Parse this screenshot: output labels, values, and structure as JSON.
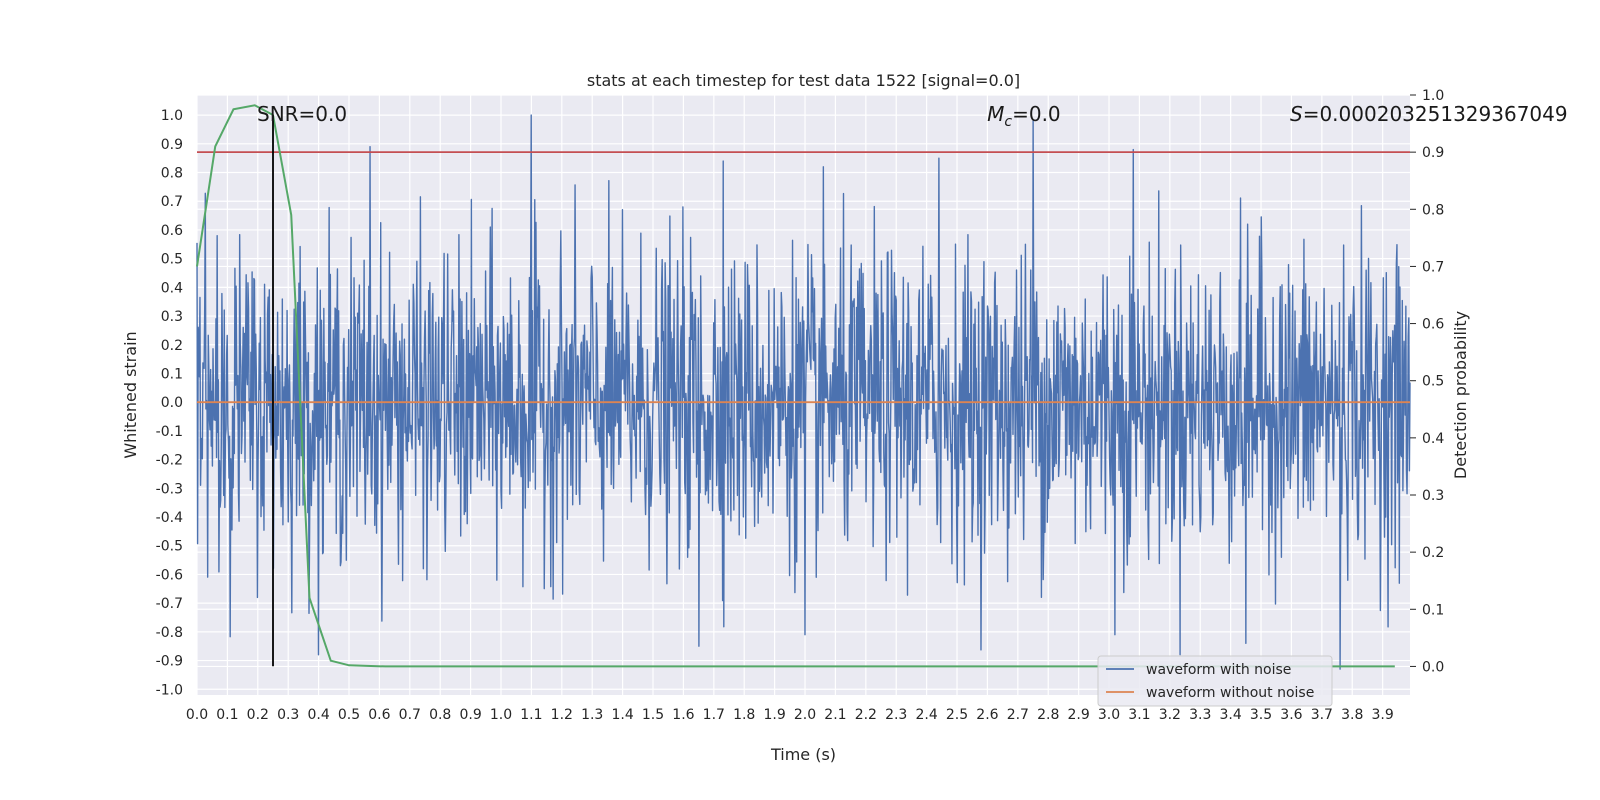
{
  "chart_data": {
    "type": "line",
    "title": "stats at each timestep for test data 1522 [signal=0.0]",
    "xlabel": "Time (s)",
    "ylabel": "Whitened strain",
    "y2label": "Detection probability",
    "xlim": [
      0.0,
      3.99
    ],
    "ylim": [
      -1.02,
      1.07
    ],
    "y2lim": [
      -0.05,
      1.0
    ],
    "xticks": [
      "0.0",
      "0.1",
      "0.2",
      "0.3",
      "0.4",
      "0.5",
      "0.6",
      "0.7",
      "0.8",
      "0.9",
      "1.0",
      "1.1",
      "1.2",
      "1.3",
      "1.4",
      "1.5",
      "1.6",
      "1.7",
      "1.8",
      "1.9",
      "2.0",
      "2.1",
      "2.2",
      "2.3",
      "2.4",
      "2.5",
      "2.6",
      "2.7",
      "2.8",
      "2.9",
      "3.0",
      "3.1",
      "3.2",
      "3.3",
      "3.4",
      "3.5",
      "3.6",
      "3.7",
      "3.8",
      "3.9"
    ],
    "yticks": [
      "1.0",
      "0.9",
      "0.8",
      "0.7",
      "0.6",
      "0.5",
      "0.4",
      "0.3",
      "0.2",
      "0.1",
      "0.0",
      "-0.1",
      "-0.2",
      "-0.3",
      "-0.4",
      "-0.5",
      "-0.6",
      "-0.7",
      "-0.8",
      "-0.9",
      "-1.0"
    ],
    "y2ticks": [
      "1.0",
      "0.9",
      "0.8",
      "0.7",
      "0.6",
      "0.5",
      "0.4",
      "0.3",
      "0.2",
      "0.1",
      "0.0"
    ],
    "grid": true,
    "legend_position": "bottom-right",
    "background": "#eaeaf2",
    "series": [
      {
        "name": "waveform with noise",
        "color": "#4c72b0",
        "axis": "left",
        "kind": "noise",
        "amplitude_range": [
          -0.93,
          1.0
        ],
        "n_samples": 2048,
        "peaks": [
          {
            "x": 1.1,
            "y": 1.0
          },
          {
            "x": 2.75,
            "y": 0.98
          },
          {
            "x": 0.57,
            "y": 0.89
          },
          {
            "x": 3.08,
            "y": 0.88
          },
          {
            "x": 2.44,
            "y": 0.85
          },
          {
            "x": 1.73,
            "y": 0.84
          },
          {
            "x": 2.06,
            "y": 0.82
          },
          {
            "x": 3.76,
            "y": -0.93
          },
          {
            "x": 1.65,
            "y": -0.85
          },
          {
            "x": 3.45,
            "y": -0.84
          },
          {
            "x": 3.02,
            "y": -0.81
          },
          {
            "x": 2.0,
            "y": -0.81
          }
        ]
      },
      {
        "name": "waveform without noise",
        "color": "#dd8452",
        "axis": "left",
        "x": [
          0.0,
          3.99
        ],
        "y": [
          0.0,
          0.0
        ]
      },
      {
        "color": "#55a868",
        "axis": "right",
        "x": [
          0.0,
          0.06,
          0.12,
          0.19,
          0.25,
          0.31,
          0.37,
          0.44,
          0.5,
          0.56,
          0.62,
          0.69,
          1.0,
          2.0,
          3.0,
          3.94
        ],
        "y": [
          0.7,
          0.91,
          0.975,
          0.982,
          0.965,
          0.79,
          0.12,
          0.01,
          0.002,
          0.001,
          0.0,
          0.0,
          0.0,
          0.0,
          0.0,
          0.0
        ]
      }
    ],
    "threshold_line": {
      "axis": "right",
      "y": 0.9,
      "color": "#c44e52"
    },
    "marker_line": {
      "x": 0.25,
      "y_top": 1.0,
      "y_bottom": -0.92,
      "color": "#000000"
    },
    "annotations": [
      {
        "text": "SNR=0.0",
        "x": 0.35
      },
      {
        "text": "=0.0",
        "math_prefix": "M",
        "math_sub": "c",
        "x": 2.72
      },
      {
        "text": "=0.000203251329367049",
        "math_prefix": "S",
        "x": 3.7
      }
    ]
  }
}
